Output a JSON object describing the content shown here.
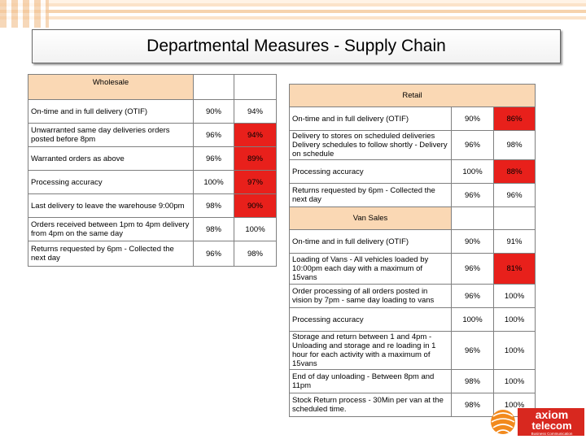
{
  "title": "Departmental Measures  - Supply Chain",
  "colors": {
    "red": "#e8201b",
    "header": "#fad8b4"
  },
  "wholesale": {
    "header": "Wholesale",
    "rows": [
      {
        "label": "On-time and in full delivery (OTIF)",
        "target": "90%",
        "actual": "94%",
        "red": false
      },
      {
        "label": "Unwarranted same day deliveries orders posted before 8pm",
        "target": "96%",
        "actual": "94%",
        "red": true
      },
      {
        "label": "Warranted orders as above",
        "target": "96%",
        "actual": "89%",
        "red": true
      },
      {
        "label": "Processing accuracy",
        "target": "100%",
        "actual": "97%",
        "red": true
      },
      {
        "label": "Last delivery to leave the warehouse 9:00pm",
        "target": "98%",
        "actual": "90%",
        "red": true
      },
      {
        "label": "Orders received between 1pm to 4pm delivery from 4pm on the same day",
        "target": "98%",
        "actual": "100%",
        "red": false
      },
      {
        "label": "Returns requested by 6pm - Collected the next day",
        "target": "96%",
        "actual": "98%",
        "red": false
      }
    ]
  },
  "retail": {
    "header": "Retail",
    "rows": [
      {
        "label": "On-time and in full delivery (OTIF)",
        "target": "90%",
        "actual": "86%",
        "red": true
      },
      {
        "label": "Delivery to stores on scheduled deliveries Delivery schedules to follow shortly - Delivery on schedule",
        "target": "96%",
        "actual": "98%",
        "red": false
      },
      {
        "label": "Processing accuracy",
        "target": "100%",
        "actual": "88%",
        "red": true
      },
      {
        "label": "Returns requested by 6pm - Collected the next day",
        "target": "96%",
        "actual": "96%",
        "red": false
      }
    ]
  },
  "vansales": {
    "header": "Van Sales",
    "rows": [
      {
        "label": "On-time and in full delivery (OTIF)",
        "target": "90%",
        "actual": "91%",
        "red": false
      },
      {
        "label": "Loading of Vans - All vehicles loaded by 10:00pm each day with a maximum of 15vans",
        "target": "96%",
        "actual": "81%",
        "red": true
      },
      {
        "label": "Order processing of all orders posted in vision by 7pm - same day loading to vans",
        "target": "96%",
        "actual": "100%",
        "red": false
      },
      {
        "label": "Processing accuracy",
        "target": "100%",
        "actual": "100%",
        "red": false
      },
      {
        "label": "Storage and return between 1 and 4pm - Unloading and storage and re loading in 1 hour for each activity with a maximum of 15vans",
        "target": "96%",
        "actual": "100%",
        "red": false
      },
      {
        "label": "End of day unloading - Between 8pm and 11pm",
        "target": "98%",
        "actual": "100%",
        "red": false
      },
      {
        "label": "Stock Return process - 30Min per van at the scheduled time.",
        "target": "98%",
        "actual": "100%",
        "red": false
      }
    ]
  },
  "logo": {
    "line1": "axiom",
    "line2": "telecom",
    "tagline": "Business Communication"
  }
}
